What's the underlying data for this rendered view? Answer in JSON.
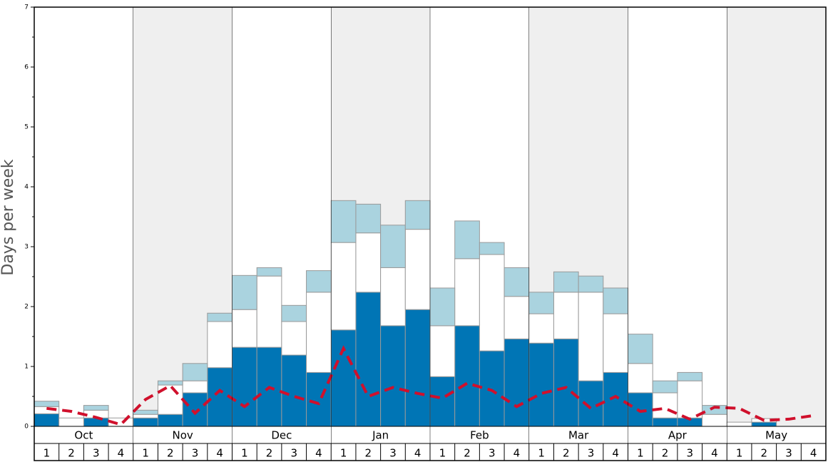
{
  "chart_data": {
    "type": "bar",
    "stacked": true,
    "ylabel": "Days per week",
    "months": [
      "Oct",
      "Nov",
      "Dec",
      "Jan",
      "Feb",
      "Mar",
      "Apr",
      "May"
    ],
    "categories": [
      "1",
      "2",
      "3",
      "4",
      "1",
      "2",
      "3",
      "4",
      "1",
      "2",
      "3",
      "4",
      "1",
      "2",
      "3",
      "4",
      "1",
      "2",
      "3",
      "4",
      "1",
      "2",
      "3",
      "4",
      "1",
      "2",
      "3",
      "4",
      "1",
      "2",
      "3",
      "4"
    ],
    "band_color": "#efefef",
    "series": [
      {
        "type": "bar",
        "color": "#0075b5",
        "values": [
          0.21,
          0,
          0.14,
          0,
          0.14,
          0.2,
          0.56,
          0.98,
          1.32,
          1.32,
          1.19,
          0.9,
          1.61,
          2.24,
          1.68,
          1.95,
          0.83,
          1.68,
          1.26,
          1.46,
          1.39,
          1.46,
          0.76,
          0.9,
          0.56,
          0.14,
          0.14,
          0,
          0,
          0.07,
          0,
          0
        ]
      },
      {
        "type": "bar",
        "color": "#ffffff",
        "values": [
          0.12,
          0.14,
          0.13,
          0.14,
          0.06,
          0.49,
          0.2,
          0.77,
          0.63,
          1.19,
          0.56,
          1.34,
          1.46,
          0.99,
          0.97,
          1.34,
          0.85,
          1.12,
          1.61,
          0.71,
          0.49,
          0.78,
          1.48,
          0.98,
          0.49,
          0.42,
          0.62,
          0.2,
          0.07,
          0.06,
          0,
          0
        ]
      },
      {
        "type": "bar",
        "color": "#aad3df",
        "values": [
          0.09,
          0,
          0.08,
          0,
          0.07,
          0.07,
          0.29,
          0.14,
          0.57,
          0.14,
          0.27,
          0.36,
          0.7,
          0.48,
          0.71,
          0.48,
          0.63,
          0.63,
          0.2,
          0.48,
          0.36,
          0.34,
          0.27,
          0.43,
          0.49,
          0.2,
          0.14,
          0.15,
          0,
          0,
          0,
          0
        ]
      },
      {
        "type": "line",
        "color": "#d0102c",
        "dashed": true,
        "values": [
          0.3,
          0.25,
          0.15,
          0.03,
          0.45,
          0.68,
          0.22,
          0.6,
          0.33,
          0.65,
          0.5,
          0.38,
          1.3,
          0.5,
          0.65,
          0.55,
          0.47,
          0.72,
          0.6,
          0.33,
          0.55,
          0.65,
          0.3,
          0.5,
          0.25,
          0.3,
          0.12,
          0.32,
          0.3,
          0.1,
          0.12,
          0.18
        ]
      }
    ],
    "ylim": [
      0,
      7
    ],
    "yticks": [
      0,
      1,
      2,
      3,
      4,
      5,
      6,
      7
    ],
    "yminorticks": [
      0.5,
      1.5,
      2.5,
      3.5,
      4.5,
      5.5,
      6.5
    ]
  }
}
